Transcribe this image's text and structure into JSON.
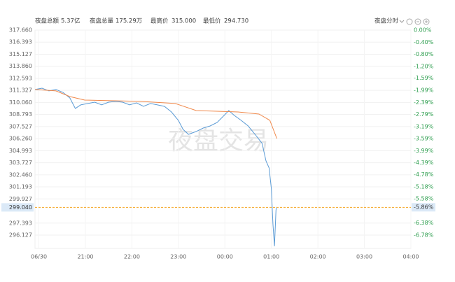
{
  "header": {
    "stats": [
      {
        "label": "夜盘总额",
        "value": "5.37亿"
      },
      {
        "label": "夜盘总量",
        "value": "175.29万"
      },
      {
        "label": "最高价",
        "value": "315.000"
      },
      {
        "label": "最低价",
        "value": "294.730"
      }
    ],
    "mode": "夜盘分时"
  },
  "chart_data": {
    "type": "line",
    "watermark": "夜盘交易",
    "xlim": [
      -5,
      480
    ],
    "xticks": [
      {
        "value": 0,
        "label": "06/30"
      },
      {
        "value": 60,
        "label": "21:00"
      },
      {
        "value": 120,
        "label": "22:00"
      },
      {
        "value": 180,
        "label": "23:00"
      },
      {
        "value": 240,
        "label": "00:00"
      },
      {
        "value": 300,
        "label": "01:00"
      },
      {
        "value": 360,
        "label": "02:00"
      },
      {
        "value": 420,
        "label": "03:00"
      },
      {
        "value": 480,
        "label": "04:00"
      }
    ],
    "ylim": [
      294.73,
      317.66
    ],
    "yticks": [
      {
        "value": 317.66,
        "label": "317.660"
      },
      316.393,
      315.127,
      {
        "value": 313.86,
        "label": "313.860"
      },
      312.593,
      311.327,
      {
        "value": 310.06,
        "label": "310.060"
      },
      308.793,
      307.527,
      {
        "value": 306.26,
        "label": "306.260"
      },
      304.993,
      303.727,
      {
        "value": 302.46,
        "label": "302.460"
      },
      301.193,
      299.927,
      297.393,
      296.127
    ],
    "y2lim": [
      -7.22,
      0
    ],
    "y2ticks": [
      {
        "value": 0,
        "label": "0.00%"
      },
      {
        "value": -0.4,
        "label": "-0.40%"
      },
      {
        "value": -0.8,
        "label": "-0.80%"
      },
      {
        "value": -1.2,
        "label": "-1.20%"
      },
      {
        "value": -1.59,
        "label": "-1.59%"
      },
      {
        "value": -1.99,
        "label": "-1.99%"
      },
      {
        "value": -2.39,
        "label": "-2.39%"
      },
      {
        "value": -2.79,
        "label": "-2.79%"
      },
      {
        "value": -3.19,
        "label": "-3.19%"
      },
      {
        "value": -3.59,
        "label": "-3.59%"
      },
      {
        "value": -3.99,
        "label": "-3.99%"
      },
      {
        "value": -4.39,
        "label": "-4.39%"
      },
      {
        "value": -4.78,
        "label": "-4.78%"
      },
      {
        "value": -5.18,
        "label": "-5.18%"
      },
      {
        "value": -5.58,
        "label": "-5.58%"
      },
      {
        "value": -6.38,
        "label": "-6.38%"
      },
      {
        "value": -6.78,
        "label": "-6.78%"
      }
    ],
    "grid": true,
    "reference_line": {
      "color": "#f5a623",
      "y": {
        "value": 299.04,
        "label": "299.040"
      },
      "y2": {
        "value": -5.86,
        "label": "-5.86%"
      }
    },
    "series": [
      {
        "color": "#5b9bd5",
        "x": [
          -5,
          4,
          13,
          22,
          31,
          40,
          47,
          54,
          63,
          72,
          81,
          90,
          99,
          108,
          117,
          126,
          135,
          144,
          153,
          162,
          171,
          180,
          186,
          193,
          203,
          212,
          221,
          230,
          239,
          245,
          252,
          261,
          270,
          279,
          288,
          293,
          297,
          300,
          302,
          304,
          306,
          307
        ],
        "values": [
          311.42,
          311.56,
          311.27,
          311.42,
          311.12,
          310.53,
          309.43,
          309.8,
          309.95,
          310.09,
          309.8,
          310.09,
          310.17,
          310.09,
          309.8,
          310.02,
          309.65,
          309.95,
          309.8,
          309.65,
          309.06,
          308.18,
          307.23,
          306.71,
          307.01,
          307.37,
          307.59,
          307.96,
          308.7,
          309.21,
          308.7,
          308.18,
          307.59,
          306.71,
          305.76,
          303.92,
          303.19,
          300.98,
          297.31,
          294.96,
          298.78,
          299.07
        ]
      },
      {
        "color": "#f0884a",
        "x": [
          -5,
          22,
          40,
          59,
          131,
          176,
          203,
          257,
          284,
          298,
          307
        ],
        "values": [
          311.42,
          311.27,
          310.68,
          310.31,
          310.17,
          309.95,
          309.21,
          309.06,
          308.84,
          308.18,
          306.27
        ]
      }
    ]
  }
}
